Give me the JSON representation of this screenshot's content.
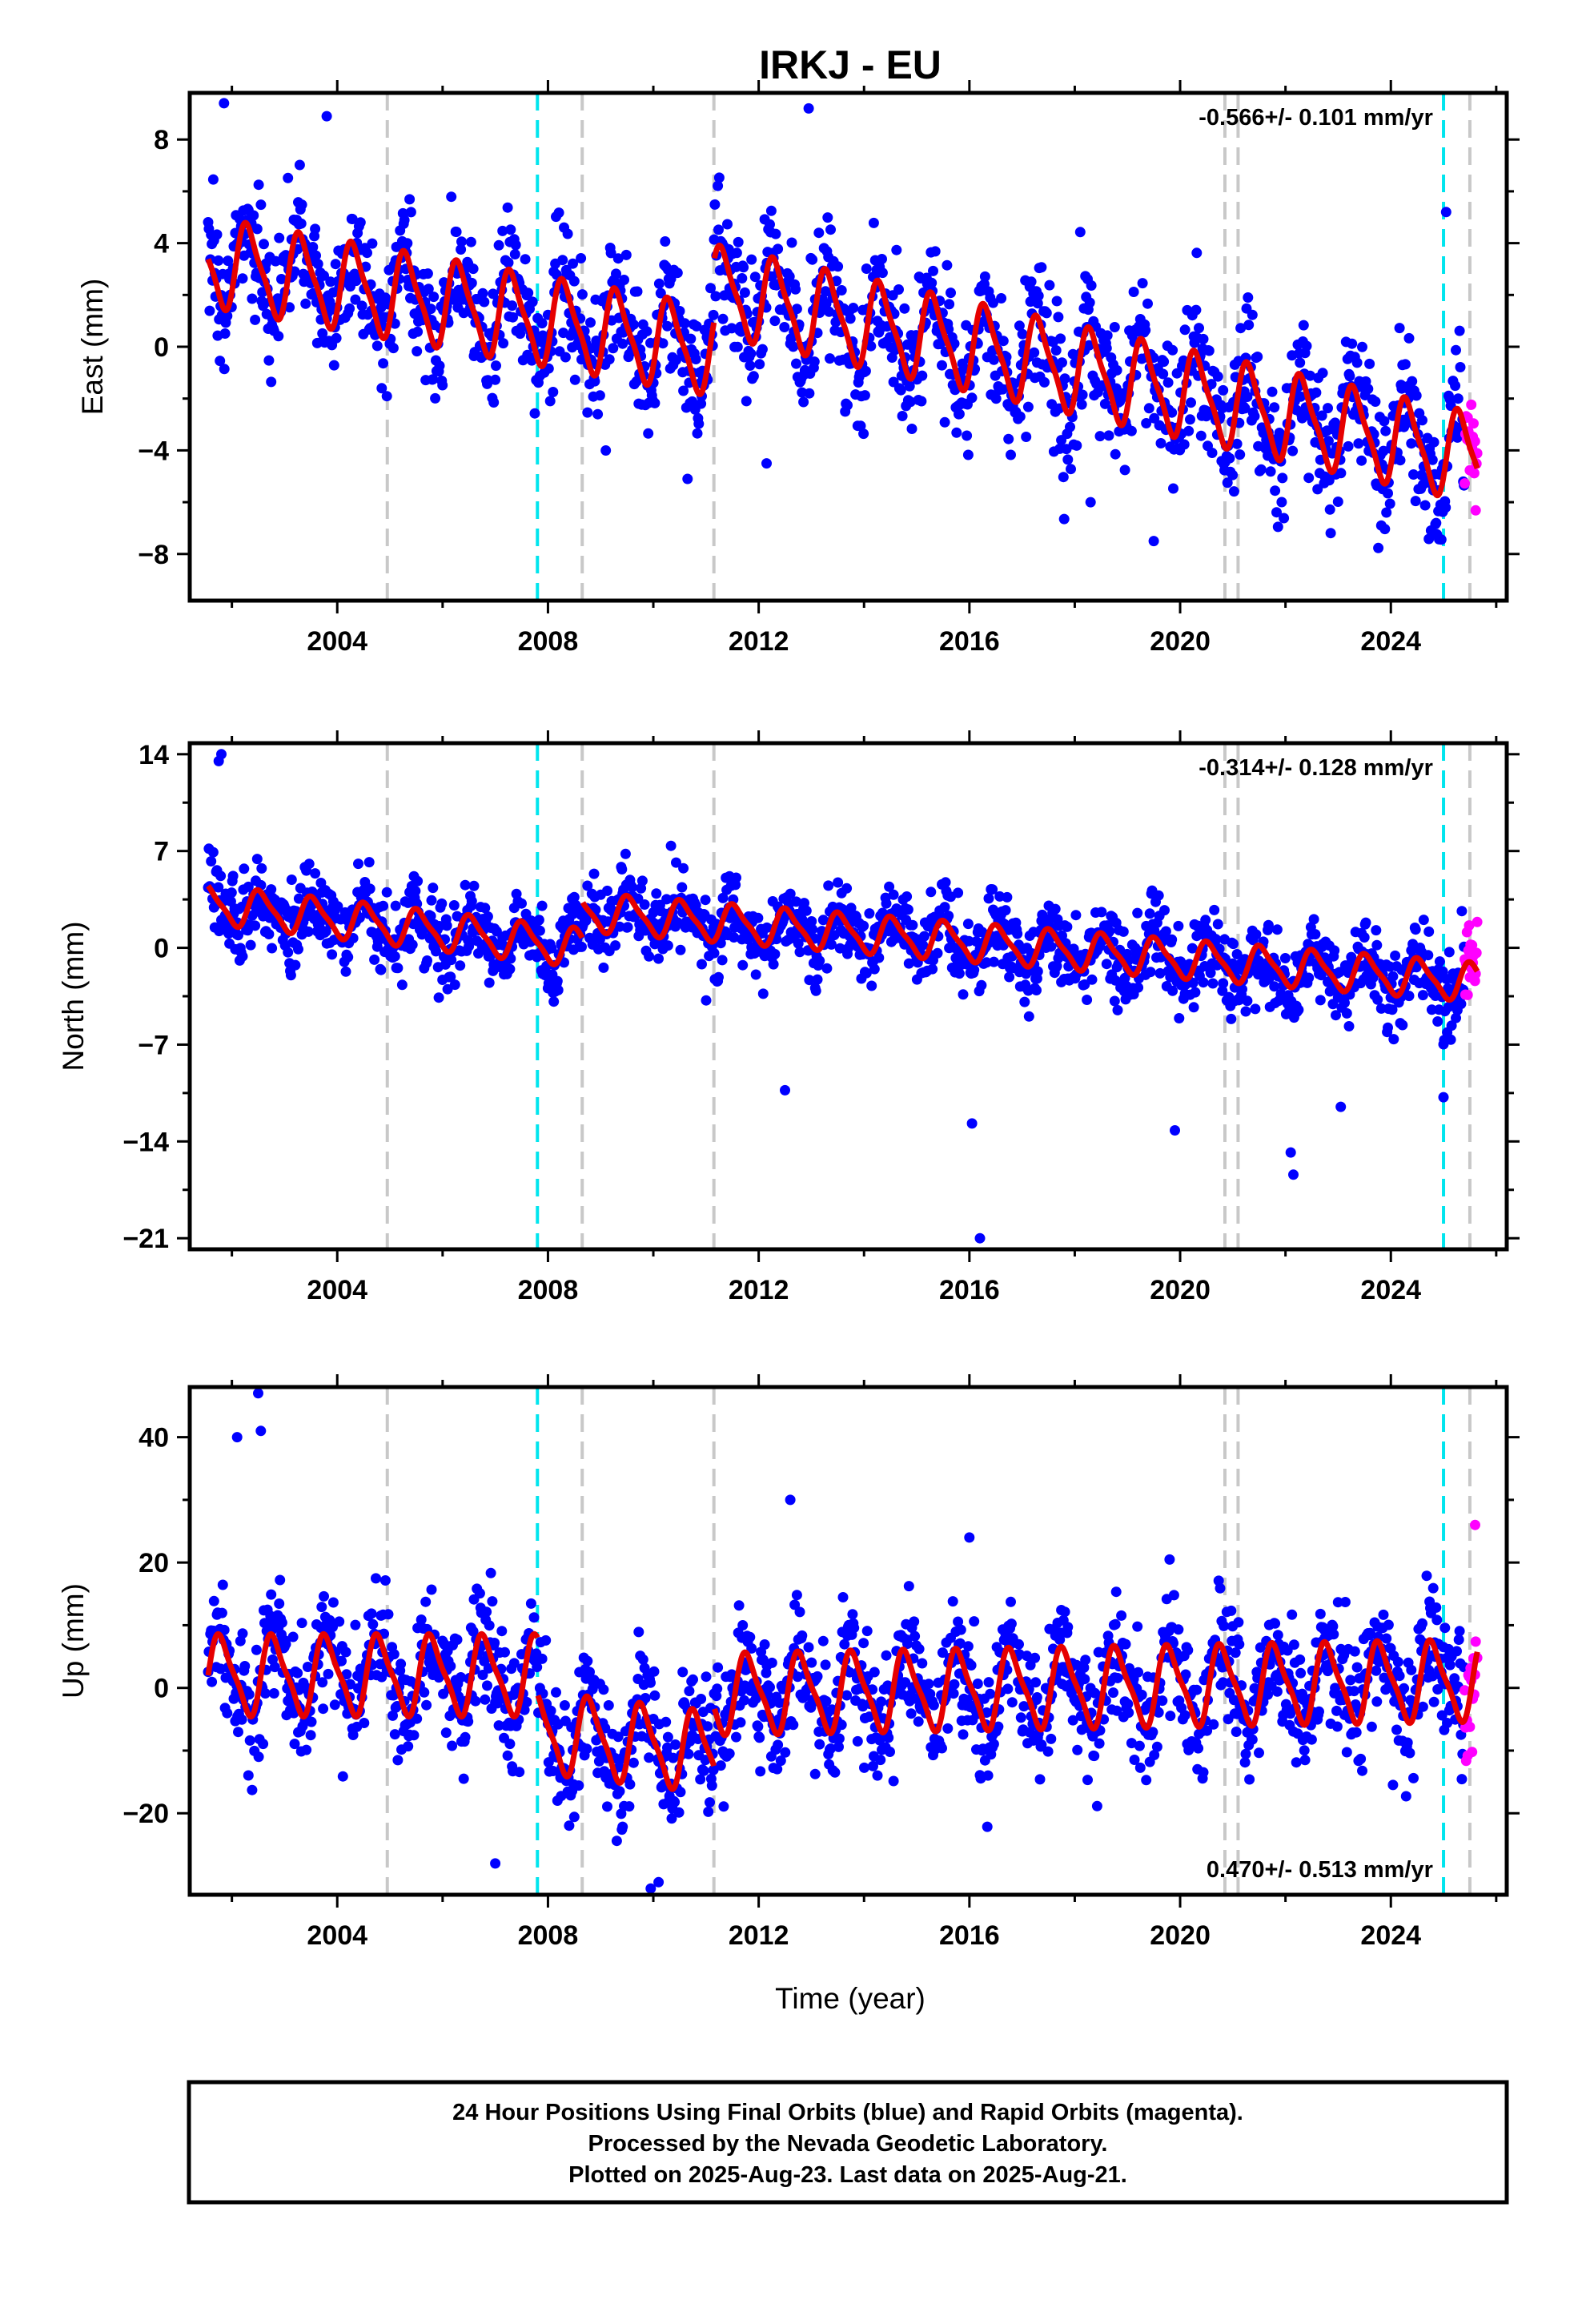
{
  "chart_data": {
    "type": "scatter",
    "title": "IRKJ - EU",
    "xlabel": "Time (year)",
    "xlim": [
      2001.2,
      2026.2
    ],
    "x_ticks": [
      2004,
      2008,
      2012,
      2016,
      2020,
      2024
    ],
    "x_tick_labels": [
      "2004",
      "2008",
      "2012",
      "2016",
      "2020",
      "2024"
    ],
    "grid": false,
    "colors": {
      "final_orbits": "#0000ff",
      "rapid_orbits": "#ff00ff",
      "model_fit": "#e60000",
      "equipment_change": "#c8c8c8",
      "earthquake": "#00e5ee"
    },
    "vertical_markers": {
      "equipment_change": [
        2004.95,
        2008.65,
        2011.15,
        2020.85,
        2021.1,
        2025.5
      ],
      "earthquake": [
        2007.8,
        2025.0
      ]
    },
    "last_data": 2025.64,
    "rapid_start": 2025.4,
    "panels": [
      {
        "ylabel": "East (mm)",
        "ylim": [
          -9.8,
          9.8
        ],
        "y_ticks": [
          8,
          4,
          0,
          -4,
          -8
        ],
        "y_tick_labels": [
          "8",
          "4",
          "0",
          "−4",
          "−8"
        ],
        "rate_text": "-0.566+/- 0.101 mm/yr",
        "rate_position": "top-right",
        "noise_sd": 1.3,
        "trend": [
          {
            "from": 2001.5,
            "to": 2011.15,
            "start_value": 3.3,
            "slope": -0.36
          },
          {
            "from": 2011.15,
            "to": 2025.65,
            "start_value": 2.2,
            "slope": -0.45
          }
        ],
        "seasonal": {
          "amplitude": 1.6,
          "phase": 0.07
        },
        "outliers": [
          {
            "x": 2001.85,
            "y": 9.4
          },
          {
            "x": 2003.8,
            "y": 8.9
          },
          {
            "x": 2012.95,
            "y": 9.2
          },
          {
            "x": 2025.05,
            "y": 5.2
          },
          {
            "x": 2012.15,
            "y": -4.5
          },
          {
            "x": 2018.3,
            "y": -6.0
          },
          {
            "x": 2019.5,
            "y": -7.5
          },
          {
            "x": 2010.65,
            "y": -5.1
          }
        ]
      },
      {
        "ylabel": "North (mm)",
        "ylim": [
          -21.8,
          14.8
        ],
        "y_ticks": [
          14,
          7,
          0,
          -7,
          -14,
          -21
        ],
        "y_tick_labels": [
          "14",
          "7",
          "0",
          "−7",
          "−14",
          "−21"
        ],
        "rate_text": "-0.314+/- 0.128 mm/yr",
        "rate_position": "top-right",
        "noise_sd": 1.4,
        "trend": [
          {
            "from": 2001.5,
            "to": 2008.65,
            "start_value": 3.2,
            "slope": -0.45
          },
          {
            "from": 2008.65,
            "to": 2025.65,
            "start_value": 2.6,
            "slope": -0.3
          }
        ],
        "seasonal": {
          "amplitude": 1.3,
          "phase": 0.3
        },
        "outliers": [
          {
            "x": 2001.8,
            "y": 14.0
          },
          {
            "x": 2001.75,
            "y": 13.5
          },
          {
            "x": 2016.2,
            "y": -21.0
          },
          {
            "x": 2016.05,
            "y": -12.7
          },
          {
            "x": 2022.15,
            "y": -16.4
          },
          {
            "x": 2022.1,
            "y": -14.8
          },
          {
            "x": 2012.5,
            "y": -10.3
          },
          {
            "x": 2019.9,
            "y": -13.2
          },
          {
            "x": 2023.05,
            "y": -11.5
          },
          {
            "x": 2025.0,
            "y": -10.8
          }
        ]
      },
      {
        "ylabel": "Up (mm)",
        "ylim": [
          -33,
          48
        ],
        "y_ticks": [
          40,
          20,
          0,
          -20
        ],
        "y_tick_labels": [
          "40",
          "20",
          "0",
          "−20"
        ],
        "rate_text": "0.470+/- 0.513 mm/yr",
        "rate_position": "bottom-right",
        "noise_sd": 5.0,
        "trend": [
          {
            "from": 2001.5,
            "to": 2007.8,
            "start_value": 2.0,
            "slope": 0.0
          },
          {
            "from": 2007.8,
            "to": 2011.15,
            "start_value": -7.0,
            "slope": -1.0
          },
          {
            "from": 2011.15,
            "to": 2025.65,
            "start_value": -1.0,
            "slope": 0.15
          }
        ],
        "seasonal": {
          "amplitude": 6.0,
          "phase": 0.55
        },
        "outliers": [
          {
            "x": 2002.5,
            "y": 47.0
          },
          {
            "x": 2002.1,
            "y": 40.0
          },
          {
            "x": 2002.55,
            "y": 41.0
          },
          {
            "x": 2012.6,
            "y": 30.0
          },
          {
            "x": 2016.0,
            "y": 24.0
          },
          {
            "x": 2010.1,
            "y": -31.0
          },
          {
            "x": 2009.95,
            "y": -32.0
          },
          {
            "x": 2007.0,
            "y": -28.0
          },
          {
            "x": 2025.6,
            "y": 26.0
          }
        ]
      }
    ]
  },
  "footer": {
    "line1": "24 Hour Positions Using Final Orbits (blue) and Rapid Orbits (magenta).",
    "line2": "Processed by the Nevada Geodetic Laboratory.",
    "line3": "Plotted on 2025-Aug-23. Last data on 2025-Aug-21."
  }
}
